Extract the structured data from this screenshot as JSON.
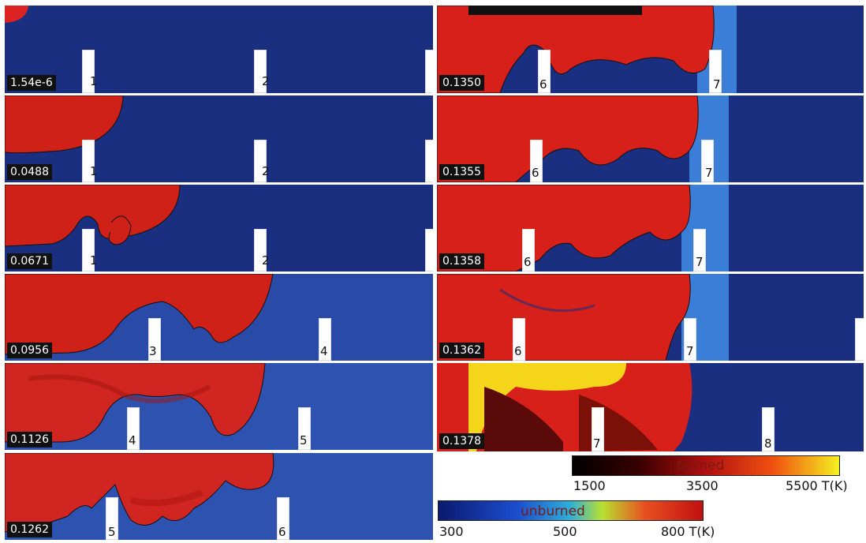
{
  "panels": {
    "left": [
      {
        "time": "1.54e-6",
        "markers": [
          "1",
          "2"
        ]
      },
      {
        "time": "0.0488",
        "markers": [
          "1",
          "2"
        ]
      },
      {
        "time": "0.0671",
        "markers": [
          "1",
          "2"
        ]
      },
      {
        "time": "0.0956",
        "markers": [
          "3",
          "4"
        ]
      },
      {
        "time": "0.1126",
        "markers": [
          "4",
          "5"
        ]
      },
      {
        "time": "0.1262",
        "markers": [
          "5",
          "6"
        ]
      }
    ],
    "right": [
      {
        "time": "0.1350",
        "markers": [
          "6",
          "7"
        ]
      },
      {
        "time": "0.1355",
        "markers": [
          "6",
          "7"
        ]
      },
      {
        "time": "0.1358",
        "markers": [
          "6",
          "7"
        ]
      },
      {
        "time": "0.1362",
        "markers": [
          "6",
          "7"
        ]
      },
      {
        "time": "0.1378",
        "markers": [
          "7",
          "8"
        ]
      }
    ]
  },
  "colorbars": {
    "burned": {
      "label": "burned",
      "ticks": [
        "1500",
        "3500",
        "5500 T(K)"
      ]
    },
    "unburned": {
      "label": "unburned",
      "ticks": [
        "300",
        "500",
        "800 T(K)"
      ]
    }
  },
  "colors": {
    "unburned": "#1a2f7e",
    "burned": "#d8201a",
    "hot": "#f5e01a"
  }
}
